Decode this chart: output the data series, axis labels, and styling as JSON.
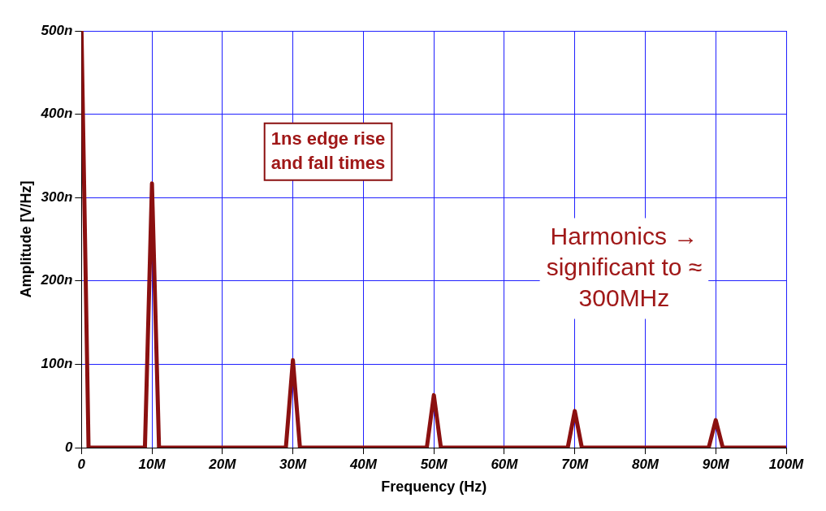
{
  "chart_data": {
    "type": "line",
    "xlabel": "Frequency (Hz)",
    "ylabel": "Amplitude [V/Hz]",
    "x": [
      0,
      1,
      9,
      10,
      11,
      29,
      30,
      31,
      49,
      50,
      51,
      69,
      70,
      71,
      89,
      90,
      91,
      100
    ],
    "series": [
      {
        "color": "#8b1010",
        "values": [
          500,
          0,
          0,
          317,
          0,
          0,
          105,
          0,
          0,
          63,
          0,
          0,
          44,
          0,
          0,
          33,
          0,
          0
        ]
      }
    ],
    "xlim": [
      0,
      100
    ],
    "xticks": [
      0,
      {
        "value": 10,
        "label": "10M"
      },
      {
        "value": 20,
        "label": "20M"
      },
      {
        "value": 30,
        "label": "30M"
      },
      {
        "value": 40,
        "label": "40M"
      },
      {
        "value": 50,
        "label": "50M"
      },
      {
        "value": 60,
        "label": "60M"
      },
      {
        "value": 70,
        "label": "70M"
      },
      {
        "value": 80,
        "label": "80M"
      },
      {
        "value": 90,
        "label": "90M"
      },
      {
        "value": 100,
        "label": "100M"
      }
    ],
    "ylim": [
      0,
      500
    ],
    "yticks": [
      0,
      {
        "value": 100,
        "label": "100n"
      },
      {
        "value": 200,
        "label": "200n"
      },
      {
        "value": 300,
        "label": "300n"
      },
      {
        "value": 400,
        "label": "400n"
      },
      {
        "value": 500,
        "label": "500n"
      }
    ],
    "grid": true,
    "marker": "none",
    "line_style": "solid",
    "annotations": [
      "1ns edge rise and fall times",
      "Harmonics → significant to ≈ 300MHz"
    ]
  }
}
